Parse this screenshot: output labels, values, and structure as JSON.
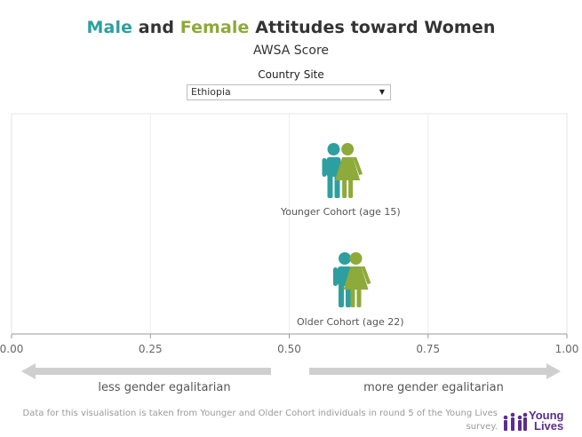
{
  "title": {
    "male": "Male",
    "and": " and ",
    "female": "Female",
    "rest": " Attitudes toward Women"
  },
  "subtitle": "AWSA Score",
  "filter": {
    "label": "Country Site",
    "selected": "Ethiopia"
  },
  "colors": {
    "male": "#2e9fa0",
    "female": "#8daa3a",
    "arrow": "#cfcfcf",
    "grid": "#eeeeee"
  },
  "chart_data": {
    "type": "scatter",
    "xlim": [
      0,
      1
    ],
    "x_ticks": [
      "0.00",
      "0.25",
      "0.50",
      "0.75",
      "1.00"
    ],
    "x_tick_values": [
      0,
      0.25,
      0.5,
      0.75,
      1
    ],
    "grid": true,
    "categories": [
      "Younger Cohort (age 15)",
      "Older Cohort (age 22)"
    ],
    "series": [
      {
        "name": "Male",
        "values": [
          0.58,
          0.6
        ]
      },
      {
        "name": "Female",
        "values": [
          0.605,
          0.62
        ]
      }
    ],
    "annotations": {
      "left": "less gender egalitarian",
      "right": "more gender egalitarian"
    }
  },
  "footer": "Data for this visualisation is taken from Younger and Older Cohort individuals in round 5 of the Young Lives survey.",
  "logo": {
    "line1": "Young",
    "line2": "Lives"
  }
}
